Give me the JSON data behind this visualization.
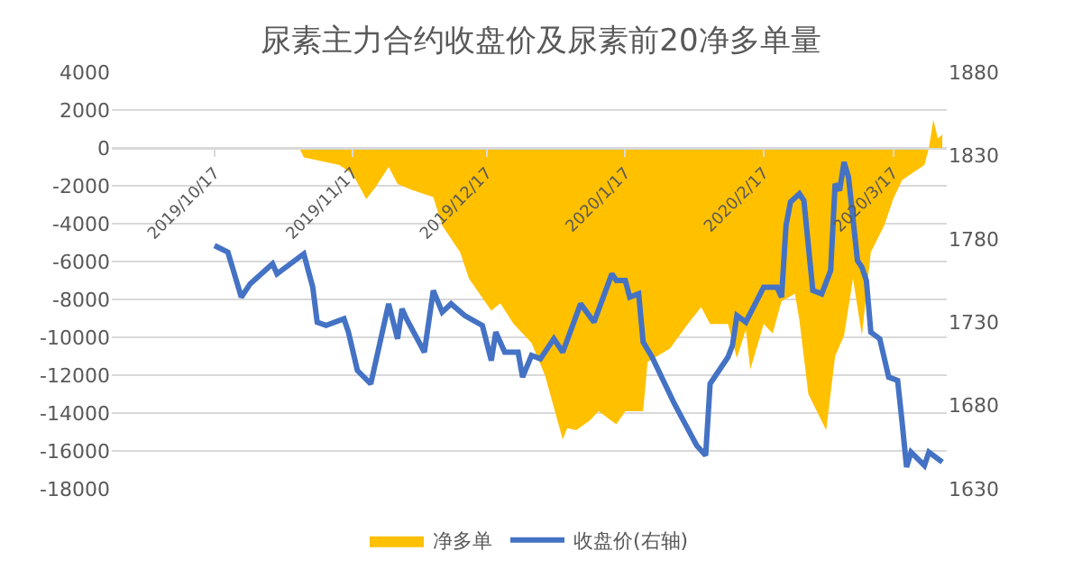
{
  "chart_data": {
    "type": "area",
    "title": "尿素主力合约收盘价及尿素前20净多单量",
    "series": [
      {
        "name": "净多单",
        "color": "#ffc000",
        "x": [
          "2019-10-17",
          "2019-11-05",
          "2019-11-06",
          "2019-11-14",
          "2019-11-17",
          "2019-11-20",
          "2019-11-22",
          "2019-11-25",
          "2019-11-27",
          "2019-11-30",
          "2019-12-05",
          "2019-12-07",
          "2019-12-11",
          "2019-12-13",
          "2019-12-18",
          "2019-12-20",
          "2019-12-23",
          "2019-12-27",
          "2019-12-30",
          "2020-01-03",
          "2020-01-04",
          "2020-01-06",
          "2020-01-09",
          "2020-01-11",
          "2020-01-15",
          "2020-01-17",
          "2020-01-21",
          "2020-01-22",
          "2020-01-27",
          "2020-01-31",
          "2020-02-03",
          "2020-02-05",
          "2020-02-09",
          "2020-02-11",
          "2020-02-13",
          "2020-02-14",
          "2020-02-17",
          "2020-02-19",
          "2020-02-21",
          "2020-02-24",
          "2020-02-25",
          "2020-02-27",
          "2020-03-02",
          "2020-03-04",
          "2020-03-06",
          "2020-03-08",
          "2020-03-10",
          "2020-03-12",
          "2020-03-15",
          "2020-03-17",
          "2020-03-19",
          "2020-03-24",
          "2020-03-25",
          "2020-03-26",
          "2020-03-27",
          "2020-03-28"
        ],
        "values": [
          0,
          0,
          -500,
          -900,
          -1400,
          -2700,
          -2100,
          -1000,
          -1900,
          -2200,
          -2600,
          -4100,
          -5500,
          -6900,
          -8600,
          -8200,
          -9300,
          -10300,
          -12000,
          -15400,
          -14800,
          -14900,
          -14400,
          -13900,
          -14600,
          -13900,
          -13900,
          -11300,
          -10600,
          -9300,
          -8400,
          -9300,
          -9300,
          -11100,
          -9600,
          -11700,
          -9300,
          -9800,
          -8100,
          -7700,
          -9100,
          -13000,
          -14900,
          -11000,
          -9900,
          -6900,
          -9900,
          -5500,
          -4100,
          -2700,
          -1700,
          -900,
          0,
          1500,
          500,
          700
        ]
      },
      {
        "name": "收盘价(右轴)",
        "type": "line",
        "axis": "y2",
        "color": "#4472c4",
        "x": [
          "2019-10-17",
          "2019-10-20",
          "2019-10-23",
          "2019-10-25",
          "2019-10-30",
          "2019-10-31",
          "2019-11-06",
          "2019-11-08",
          "2019-11-09",
          "2019-11-11",
          "2019-11-15",
          "2019-11-16",
          "2019-11-18",
          "2019-11-21",
          "2019-11-25",
          "2019-11-27",
          "2019-11-28",
          "2019-11-29",
          "2019-12-03",
          "2019-12-05",
          "2019-12-07",
          "2019-12-09",
          "2019-12-12",
          "2019-12-16",
          "2019-12-18",
          "2019-12-19",
          "2019-12-21",
          "2019-12-24",
          "2019-12-25",
          "2019-12-27",
          "2019-12-29",
          "2020-01-01",
          "2020-01-03",
          "2020-01-07",
          "2020-01-10",
          "2020-01-14",
          "2020-01-15",
          "2020-01-17",
          "2020-01-18",
          "2020-01-20",
          "2020-01-21",
          "2020-01-23",
          "2020-01-28",
          "2020-02-02",
          "2020-02-04",
          "2020-02-05",
          "2020-02-09",
          "2020-02-10",
          "2020-02-11",
          "2020-02-13",
          "2020-02-17",
          "2020-02-20",
          "2020-02-21",
          "2020-02-22",
          "2020-02-23",
          "2020-02-25",
          "2020-02-26",
          "2020-02-28",
          "2020-03-01",
          "2020-03-03",
          "2020-03-04",
          "2020-03-05",
          "2020-03-06",
          "2020-03-07",
          "2020-03-09",
          "2020-03-10",
          "2020-03-11",
          "2020-03-12",
          "2020-03-14",
          "2020-03-16",
          "2020-03-18",
          "2020-03-19",
          "2020-03-20",
          "2020-03-21",
          "2020-03-24",
          "2020-03-25",
          "2020-03-28"
        ],
        "values": [
          1776,
          1772,
          1745,
          1753,
          1765,
          1759,
          1771,
          1751,
          1730,
          1728,
          1732,
          1724,
          1701,
          1693,
          1741,
          1720,
          1738,
          1732,
          1712,
          1749,
          1736,
          1741,
          1734,
          1728,
          1707,
          1724,
          1712,
          1712,
          1697,
          1710,
          1708,
          1720,
          1712,
          1741,
          1730,
          1759,
          1755,
          1755,
          1745,
          1747,
          1718,
          1709,
          1681,
          1656,
          1650,
          1693,
          1709,
          1716,
          1734,
          1730,
          1751,
          1751,
          1745,
          1788,
          1802,
          1807,
          1803,
          1749,
          1747,
          1761,
          1813,
          1809,
          1826,
          1817,
          1767,
          1763,
          1755,
          1724,
          1720,
          1697,
          1695,
          1670,
          1643,
          1652,
          1644,
          1652,
          1646
        ]
      }
    ],
    "xlim": [
      "2019-09-24",
      "2020-03-29"
    ],
    "xticks": [
      {
        "value": "2019-10-17",
        "label": "2019/10/17"
      },
      {
        "value": "2019-11-17",
        "label": "2019/11/17"
      },
      {
        "value": "2019-12-17",
        "label": "2019/12/17"
      },
      {
        "value": "2020-01-17",
        "label": "2020/1/17"
      },
      {
        "value": "2020-02-17",
        "label": "2020/2/17"
      },
      {
        "value": "2020-03-17",
        "label": "2020/3/17"
      }
    ],
    "ylim": [
      -18000,
      4000
    ],
    "yticks": [
      -18000,
      -16000,
      -14000,
      -12000,
      -10000,
      -8000,
      -6000,
      -4000,
      -2000,
      0,
      2000,
      4000
    ],
    "y2lim": [
      1630,
      1880
    ],
    "y2ticks": [
      1630,
      1680,
      1730,
      1780,
      1830,
      1880
    ],
    "grid": "y",
    "legend": "bottom"
  }
}
